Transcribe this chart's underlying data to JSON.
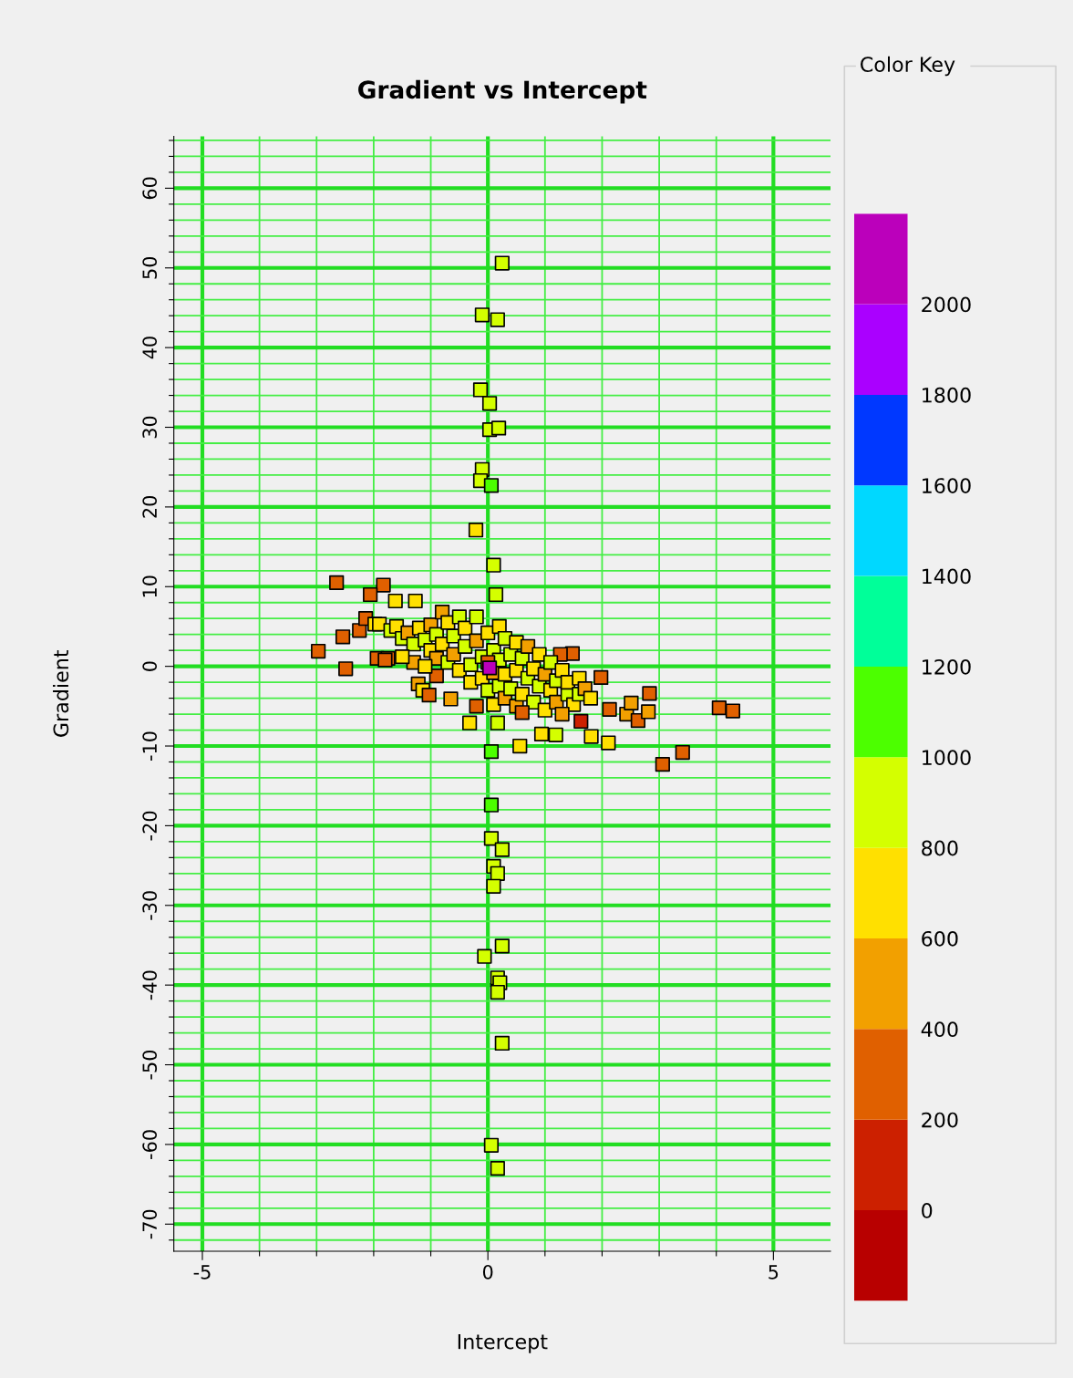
{
  "chart_data": {
    "type": "scatter",
    "title": "Gradient vs Intercept",
    "xlabel": "Intercept",
    "ylabel": "Gradient",
    "clabel": "Color Key",
    "xlim": [
      -5.5,
      6
    ],
    "xticks": [
      -5,
      {
        "value": -4,
        "label": null
      },
      {
        "value": -3,
        "label": null
      },
      {
        "value": -2,
        "label": null
      },
      {
        "value": -1,
        "label": null
      },
      0,
      {
        "value": 1,
        "label": null
      },
      {
        "value": 2,
        "label": null
      },
      {
        "value": 3,
        "label": null
      },
      {
        "value": 4,
        "label": null
      },
      5
    ],
    "ylim": [
      -73.4,
      66.5
    ],
    "yticks": [
      {
        "value": -72,
        "label": null
      },
      -70,
      {
        "value": -68,
        "label": null
      },
      {
        "value": -66,
        "label": null
      },
      {
        "value": -64,
        "label": null
      },
      {
        "value": -62,
        "label": null
      },
      -60,
      {
        "value": -58,
        "label": null
      },
      {
        "value": -56,
        "label": null
      },
      {
        "value": -54,
        "label": null
      },
      {
        "value": -52,
        "label": null
      },
      -50,
      {
        "value": -48,
        "label": null
      },
      {
        "value": -46,
        "label": null
      },
      {
        "value": -44,
        "label": null
      },
      {
        "value": -42,
        "label": null
      },
      -40,
      {
        "value": -38,
        "label": null
      },
      {
        "value": -36,
        "label": null
      },
      {
        "value": -34,
        "label": null
      },
      {
        "value": -32,
        "label": null
      },
      -30,
      {
        "value": -28,
        "label": null
      },
      {
        "value": -26,
        "label": null
      },
      {
        "value": -24,
        "label": null
      },
      {
        "value": -22,
        "label": null
      },
      -20,
      {
        "value": -18,
        "label": null
      },
      {
        "value": -16,
        "label": null
      },
      {
        "value": -14,
        "label": null
      },
      {
        "value": -12,
        "label": null
      },
      -10,
      {
        "value": -8,
        "label": null
      },
      {
        "value": -6,
        "label": null
      },
      {
        "value": -4,
        "label": null
      },
      {
        "value": -2,
        "label": null
      },
      0,
      {
        "value": 2,
        "label": null
      },
      {
        "value": 4,
        "label": null
      },
      {
        "value": 6,
        "label": null
      },
      {
        "value": 8,
        "label": null
      },
      10,
      {
        "value": 12,
        "label": null
      },
      {
        "value": 14,
        "label": null
      },
      {
        "value": 16,
        "label": null
      },
      {
        "value": 18,
        "label": null
      },
      20,
      {
        "value": 22,
        "label": null
      },
      {
        "value": 24,
        "label": null
      },
      {
        "value": 26,
        "label": null
      },
      {
        "value": 28,
        "label": null
      },
      30,
      {
        "value": 32,
        "label": null
      },
      {
        "value": 34,
        "label": null
      },
      {
        "value": 36,
        "label": null
      },
      {
        "value": 38,
        "label": null
      },
      40,
      {
        "value": 42,
        "label": null
      },
      {
        "value": 44,
        "label": null
      },
      {
        "value": 46,
        "label": null
      },
      {
        "value": 48,
        "label": null
      },
      50,
      {
        "value": 52,
        "label": null
      },
      {
        "value": 54,
        "label": null
      },
      {
        "value": 56,
        "label": null
      },
      {
        "value": 58,
        "label": null
      },
      60,
      {
        "value": 62,
        "label": null
      },
      {
        "value": 64,
        "label": null
      },
      {
        "value": 66,
        "label": null
      }
    ],
    "clim": [
      -200,
      2200
    ],
    "cticks": [
      0,
      200,
      400,
      600,
      800,
      1000,
      1200,
      1400,
      1600,
      1800,
      2000
    ],
    "grid": true,
    "marker": "square",
    "x": [
      0.25,
      -0.1,
      0.17,
      -0.13,
      0.03,
      0.03,
      0.19,
      -0.1,
      -0.13,
      0.06,
      -0.21,
      0.1,
      0.14,
      0.06,
      0.06,
      0.06,
      0.25,
      0.1,
      0.17,
      0.1,
      0.25,
      -0.06,
      0.17,
      0.21,
      0.17,
      0.25,
      0.06,
      0.17,
      -2.65,
      -1.83,
      -2.06,
      -1.62,
      -1.27,
      -2.97,
      -2.49,
      -2.54,
      -2.25,
      -2.14,
      -1.98,
      -1.94,
      -1.75,
      -1.22,
      -1.14,
      -1.03,
      -0.65,
      -0.32,
      0.17,
      0.56,
      0.94,
      1.19,
      1.98,
      1.48,
      1.27,
      2.13,
      2.43,
      2.51,
      2.63,
      2.81,
      2.83,
      2.11,
      1.81,
      3.06,
      3.41,
      4.05,
      4.29,
      -1.9,
      -1.7,
      -1.6,
      -1.5,
      -1.4,
      -1.3,
      -1.2,
      -1.1,
      -1.0,
      -1.0,
      -0.9,
      -0.9,
      -0.8,
      -0.8,
      -0.7,
      -0.7,
      -0.6,
      -0.6,
      -0.5,
      -0.5,
      -0.4,
      -0.4,
      -0.3,
      -0.3,
      -0.2,
      -0.2,
      -0.1,
      -0.1,
      0.0,
      0.0,
      0.1,
      0.1,
      0.1,
      0.2,
      0.2,
      0.2,
      0.3,
      0.3,
      0.3,
      0.4,
      0.4,
      0.5,
      0.5,
      0.5,
      0.6,
      0.6,
      0.7,
      0.7,
      0.8,
      0.8,
      0.9,
      0.9,
      1.0,
      1.0,
      1.1,
      1.1,
      1.2,
      1.2,
      1.3,
      1.4,
      1.4,
      1.5,
      1.6,
      1.6,
      1.7,
      1.8,
      -1.3,
      -1.5,
      -1.8,
      -0.9,
      -0.2,
      0.6,
      1.3,
      -1.1,
      0.0,
      1.63,
      0.03
    ],
    "values": [
      50.6,
      44.1,
      43.5,
      34.7,
      33.0,
      29.7,
      29.9,
      24.7,
      23.3,
      22.7,
      17.1,
      12.7,
      9.0,
      -10.7,
      -17.4,
      -21.6,
      -23.0,
      -25.1,
      -26.0,
      -27.6,
      -35.1,
      -36.4,
      -39.1,
      -39.7,
      -40.9,
      -47.3,
      -60.1,
      -63.0,
      10.5,
      10.2,
      9.0,
      8.2,
      8.2,
      1.9,
      -0.3,
      3.7,
      4.5,
      6.0,
      5.3,
      1.0,
      1.0,
      -2.2,
      -3.0,
      -3.6,
      -4.1,
      -7.1,
      -7.1,
      -10.0,
      -8.5,
      -8.6,
      -1.4,
      1.6,
      1.5,
      -5.4,
      -6.0,
      -4.6,
      -6.8,
      -5.7,
      -3.4,
      -9.6,
      -8.8,
      -12.3,
      -10.8,
      -5.2,
      -5.6,
      5.3,
      4.5,
      5.0,
      3.5,
      4.2,
      2.8,
      4.8,
      3.3,
      2.0,
      5.2,
      4.0,
      1.0,
      6.8,
      2.8,
      5.5,
      0.5,
      3.8,
      1.5,
      6.2,
      -0.5,
      2.5,
      4.8,
      0.2,
      -2.0,
      3.2,
      6.2,
      1.2,
      -1.5,
      4.2,
      -3.0,
      2.0,
      -0.8,
      -4.8,
      5.0,
      0.8,
      -2.5,
      3.5,
      -1.0,
      -4.0,
      1.5,
      -2.8,
      -0.5,
      3.0,
      -5.0,
      1.0,
      -3.5,
      -1.5,
      2.5,
      -0.3,
      -4.5,
      1.5,
      -2.5,
      -1.0,
      -5.5,
      -3.0,
      0.5,
      -1.8,
      -4.5,
      -0.5,
      -3.5,
      -2.0,
      -4.8,
      -1.5,
      -3.5,
      -2.8,
      -4.0,
      0.5,
      1.2,
      0.8,
      -1.2,
      -5.0,
      -5.8,
      -6.0,
      0.0,
      0.5,
      -6.9,
      -0.2
    ],
    "cvalues": [
      900,
      900,
      900,
      900,
      900,
      900,
      900,
      900,
      900,
      1100,
      700,
      900,
      900,
      1100,
      1100,
      900,
      900,
      900,
      900,
      900,
      900,
      900,
      900,
      900,
      900,
      900,
      900,
      900,
      300,
      300,
      300,
      700,
      700,
      300,
      300,
      300,
      300,
      300,
      700,
      300,
      300,
      500,
      700,
      300,
      500,
      700,
      900,
      700,
      700,
      900,
      300,
      300,
      300,
      300,
      500,
      500,
      300,
      500,
      300,
      700,
      700,
      300,
      300,
      300,
      300,
      700,
      900,
      700,
      900,
      500,
      900,
      700,
      900,
      700,
      500,
      900,
      500,
      500,
      700,
      700,
      900,
      900,
      500,
      900,
      700,
      900,
      700,
      900,
      700,
      500,
      900,
      900,
      700,
      700,
      900,
      900,
      500,
      700,
      700,
      900,
      900,
      900,
      700,
      500,
      900,
      900,
      700,
      700,
      500,
      900,
      700,
      900,
      500,
      700,
      900,
      700,
      900,
      500,
      700,
      700,
      900,
      900,
      500,
      700,
      900,
      700,
      700,
      700,
      900,
      500,
      700,
      500,
      700,
      300,
      300,
      300,
      300,
      500,
      700,
      300,
      100,
      2100
    ]
  }
}
